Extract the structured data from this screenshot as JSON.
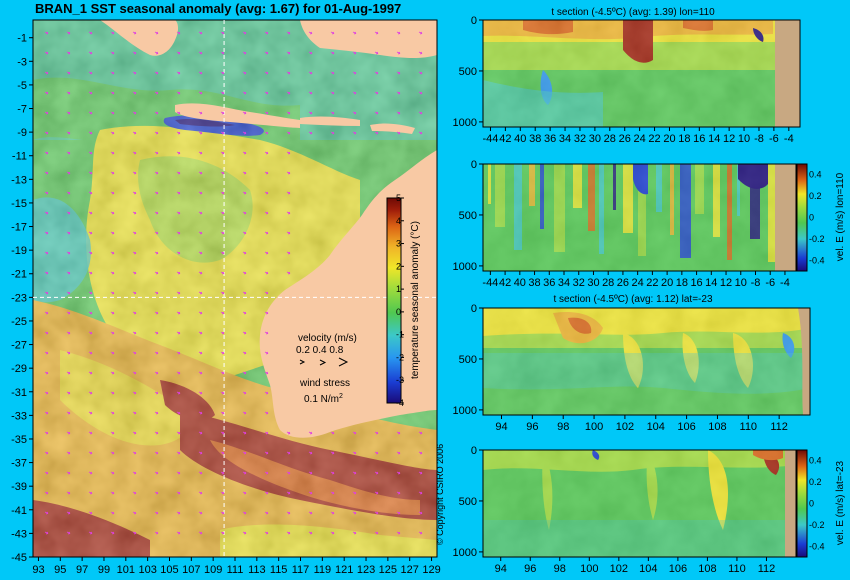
{
  "title": "BRAN_1  SST seasonal anomaly (avg: 1.67) for 01-Aug-1997",
  "copyright": "© Copyright CSIRO 2006",
  "colors": {
    "background": "#00c8f8",
    "land": "#f8c9a4",
    "land_section": "#c8a882",
    "ramp": [
      "#1a0a78",
      "#1a3cd2",
      "#2896f0",
      "#3cc8c8",
      "#50c850",
      "#a0dc3c",
      "#f0e628",
      "#f0b428",
      "#dc6414",
      "#a01e0a",
      "#6e0a05"
    ],
    "arrow": "#e040e0",
    "dashed_line": "#ffffff"
  },
  "map": {
    "x_ticks": [
      "93",
      "95",
      "97",
      "99",
      "101",
      "103",
      "105",
      "107",
      "109",
      "111",
      "113",
      "115",
      "117",
      "119",
      "121",
      "123",
      "125",
      "127",
      "129"
    ],
    "y_ticks": [
      "-1",
      "-3",
      "-5",
      "-7",
      "-9",
      "-11",
      "-13",
      "-15",
      "-17",
      "-19",
      "-21",
      "-23",
      "-25",
      "-27",
      "-29",
      "-31",
      "-33",
      "-35",
      "-37",
      "-39",
      "-41",
      "-43",
      "-45"
    ],
    "colorbar": {
      "label": "temperature seasonal anomaly (°C)",
      "ticks": [
        "5",
        "4",
        "3",
        "2",
        "1",
        "0",
        "-1",
        "-2",
        "-3",
        "-4"
      ]
    },
    "legend": {
      "velocity_label": "velocity (m/s)",
      "velocity_scale": "0.2 0.4 0.8",
      "wind_label": "wind stress",
      "wind_value": "0.1 N/m",
      "wind_exp": "2"
    },
    "crosshair": {
      "lon": 110,
      "lat": -23
    }
  },
  "chart_data": [
    {
      "type": "heatmap",
      "title": "BRAN_1  SST seasonal anomaly (avg: 1.67) for 01-Aug-1997",
      "x_ticks": [
        93,
        95,
        97,
        99,
        101,
        103,
        105,
        107,
        109,
        111,
        113,
        115,
        117,
        119,
        121,
        123,
        125,
        127,
        129
      ],
      "y_ticks": [
        -1,
        -3,
        -5,
        -7,
        -9,
        -11,
        -13,
        -15,
        -17,
        -19,
        -21,
        -23,
        -25,
        -27,
        -29,
        -31,
        -33,
        -35,
        -37,
        -39,
        -41,
        -43,
        -45
      ],
      "xlim": [
        92.5,
        129.5
      ],
      "ylim": [
        -45,
        0.5
      ],
      "colorbar_range": [
        -4,
        5
      ],
      "colorbar_label": "temperature seasonal anomaly (°C)",
      "average": 1.67
    },
    {
      "type": "heatmap",
      "title": "t section (-4.5ºC) (avg: 1.39) lon=110",
      "x_ticks": [
        "-44",
        "42",
        "40",
        "38",
        "36",
        "34",
        "32",
        "30",
        "28",
        "26",
        "24",
        "22",
        "20",
        "18",
        "16",
        "14",
        "12",
        "10",
        "-8",
        "-6",
        "-4"
      ],
      "y_ticks": [
        "0",
        "500",
        "1000"
      ],
      "xlim": [
        -45,
        -2.5
      ],
      "ylim": [
        1050,
        0
      ],
      "average": 1.39
    },
    {
      "type": "heatmap",
      "title": "",
      "x_ticks": [
        "-44",
        "42",
        "40",
        "38",
        "36",
        "34",
        "32",
        "30",
        "28",
        "26",
        "24",
        "22",
        "20",
        "18",
        "16",
        "14",
        "12",
        "10",
        "-8",
        "-6",
        "-4"
      ],
      "y_ticks": [
        "0",
        "500",
        "1000"
      ],
      "xlim": [
        -45,
        -2.5
      ],
      "ylim": [
        1050,
        0
      ],
      "colorbar_label": "vel. E (m/s) lon=110",
      "colorbar_ticks": [
        "0.4",
        "0.2",
        "0",
        "-0.2",
        "-0.4"
      ],
      "colorbar_range": [
        -0.5,
        0.5
      ]
    },
    {
      "type": "heatmap",
      "title": "t section (-4.5ºC) (avg: 1.12) lat=-23",
      "x_ticks": [
        "94",
        "96",
        "98",
        "100",
        "102",
        "104",
        "106",
        "108",
        "110",
        "112"
      ],
      "y_ticks": [
        "0",
        "500",
        "1000"
      ],
      "xlim": [
        92.8,
        114
      ],
      "ylim": [
        1050,
        0
      ],
      "average": 1.12
    },
    {
      "type": "heatmap",
      "title": "",
      "x_ticks": [
        "94",
        "96",
        "98",
        "100",
        "102",
        "104",
        "106",
        "108",
        "110",
        "112"
      ],
      "y_ticks": [
        "0",
        "500",
        "1000"
      ],
      "xlim": [
        92.8,
        114
      ],
      "ylim": [
        1050,
        0
      ],
      "colorbar_label": "vel. E (m/s) lat=-23",
      "colorbar_ticks": [
        "0.4",
        "0.2",
        "0",
        "-0.2",
        "-0.4"
      ],
      "colorbar_range": [
        -0.5,
        0.5
      ]
    }
  ]
}
